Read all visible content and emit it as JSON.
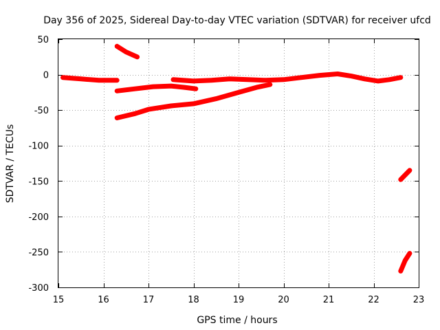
{
  "chart_data": {
    "type": "line",
    "title": "Day 356 of 2025, Sidereal Day-to-day VTEC variation (SDTVAR) for receiver ufcd",
    "xlabel": "GPS time / hours",
    "ylabel": "SDTVAR / TECUs",
    "xlim": [
      15,
      23
    ],
    "ylim": [
      -300,
      50
    ],
    "xticks": [
      "15",
      "16",
      "17",
      "18",
      "19",
      "20",
      "21",
      "22",
      "23"
    ],
    "yticks": [
      "50",
      "0",
      "-50",
      "-100",
      "-150",
      "-200",
      "-250",
      "-300"
    ],
    "xtick_values": [
      15,
      16,
      17,
      18,
      19,
      20,
      21,
      22,
      23
    ],
    "ytick_values": [
      50,
      0,
      -50,
      -100,
      -150,
      -200,
      -250,
      -300
    ],
    "grid": true,
    "series_color": "#ff0000",
    "series": [
      {
        "name": "seg-early-zero",
        "x": [
          15.1,
          15.5,
          15.9,
          16.3
        ],
        "y": [
          -4,
          -6,
          -8,
          -8
        ]
      },
      {
        "name": "seg-high-arc",
        "x": [
          16.3,
          16.5,
          16.75
        ],
        "y": [
          40,
          32,
          25
        ]
      },
      {
        "name": "seg-mid-flat",
        "x": [
          16.3,
          16.7,
          17.1,
          17.5,
          17.8,
          18.05
        ],
        "y": [
          -23,
          -20,
          -17,
          -16,
          -18,
          -20
        ]
      },
      {
        "name": "seg-rising-long",
        "x": [
          16.3,
          16.7,
          17.0,
          17.5,
          18.0,
          18.5,
          19.0,
          19.4,
          19.7
        ],
        "y": [
          -61,
          -55,
          -49,
          -44,
          -41,
          -34,
          -25,
          -18,
          -14
        ]
      },
      {
        "name": "seg-main-zero",
        "x": [
          17.55,
          18.0,
          18.4,
          18.8,
          19.2,
          19.6,
          20.0,
          20.4,
          20.8,
          21.2,
          21.5,
          21.8,
          22.1,
          22.35,
          22.6
        ],
        "y": [
          -7,
          -9,
          -8,
          -6,
          -7,
          -8,
          -7,
          -4,
          -1,
          1,
          -2,
          -6,
          -9,
          -7,
          -4
        ]
      },
      {
        "name": "seg-late-a",
        "x": [
          22.6,
          22.8
        ],
        "y": [
          -148,
          -135
        ]
      },
      {
        "name": "seg-late-b",
        "x": [
          22.6,
          22.7,
          22.8
        ],
        "y": [
          -277,
          -262,
          -252
        ]
      }
    ]
  }
}
